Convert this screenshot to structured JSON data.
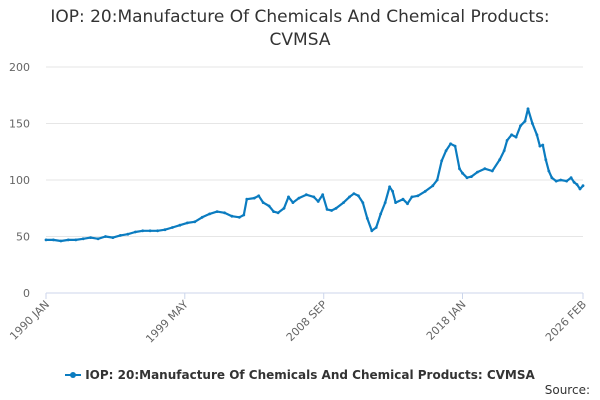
{
  "header": {
    "title_line1": "IOP: 20:Manufacture Of Chemicals And Chemical Products:",
    "title_line2": "CVMSA"
  },
  "legend": {
    "label": "IOP: 20:Manufacture Of Chemicals And Chemical Products: CVMSA"
  },
  "footer": {
    "source": "Source:"
  },
  "colors": {
    "series": "#0b7cc0",
    "grid": "#e6e6e6",
    "axis": "#ccd6eb"
  },
  "chart_data": {
    "type": "line",
    "title": "IOP: 20:Manufacture Of Chemicals And Chemical Products: CVMSA",
    "xlabel": "",
    "ylabel": "",
    "ylim": [
      0,
      200
    ],
    "yticks": [
      0,
      50,
      100,
      150,
      200
    ],
    "xlim": [
      1990.0,
      2026.1
    ],
    "xtick_labels": [
      {
        "label": "1990 JAN",
        "x": 1990.0
      },
      {
        "label": "1999 MAY",
        "x": 1999.33
      },
      {
        "label": "2008 SEP",
        "x": 2008.67
      },
      {
        "label": "2018 JAN",
        "x": 2018.0
      },
      {
        "label": "2026 FEB",
        "x": 2026.1
      }
    ],
    "series": [
      {
        "name": "IOP: 20:Manufacture Of Chemicals And Chemical Products: CVMSA",
        "points": [
          [
            1990.0,
            47
          ],
          [
            1990.5,
            47
          ],
          [
            1991.0,
            46
          ],
          [
            1991.5,
            47
          ],
          [
            1992.0,
            47
          ],
          [
            1992.5,
            48
          ],
          [
            1993.0,
            49
          ],
          [
            1993.5,
            48
          ],
          [
            1994.0,
            50
          ],
          [
            1994.5,
            49
          ],
          [
            1995.0,
            51
          ],
          [
            1995.5,
            52
          ],
          [
            1996.0,
            54
          ],
          [
            1996.5,
            55
          ],
          [
            1997.0,
            55
          ],
          [
            1997.5,
            55
          ],
          [
            1998.0,
            56
          ],
          [
            1998.5,
            58
          ],
          [
            1999.0,
            60
          ],
          [
            1999.5,
            62
          ],
          [
            2000.0,
            63
          ],
          [
            2000.5,
            67
          ],
          [
            2001.0,
            70
          ],
          [
            2001.5,
            72
          ],
          [
            2002.0,
            71
          ],
          [
            2002.5,
            68
          ],
          [
            2003.0,
            67
          ],
          [
            2003.3,
            69
          ],
          [
            2003.5,
            83
          ],
          [
            2004.0,
            84
          ],
          [
            2004.3,
            86
          ],
          [
            2004.6,
            80
          ],
          [
            2005.0,
            77
          ],
          [
            2005.3,
            72
          ],
          [
            2005.6,
            71
          ],
          [
            2006.0,
            75
          ],
          [
            2006.3,
            85
          ],
          [
            2006.6,
            80
          ],
          [
            2007.0,
            84
          ],
          [
            2007.5,
            87
          ],
          [
            2008.0,
            85
          ],
          [
            2008.3,
            81
          ],
          [
            2008.6,
            87
          ],
          [
            2008.9,
            74
          ],
          [
            2009.2,
            73
          ],
          [
            2009.5,
            75
          ],
          [
            2010.0,
            80
          ],
          [
            2010.4,
            85
          ],
          [
            2010.7,
            88
          ],
          [
            2011.0,
            86
          ],
          [
            2011.3,
            80
          ],
          [
            2011.6,
            66
          ],
          [
            2011.9,
            55
          ],
          [
            2012.2,
            58
          ],
          [
            2012.5,
            70
          ],
          [
            2012.8,
            80
          ],
          [
            2013.1,
            94
          ],
          [
            2013.3,
            90
          ],
          [
            2013.5,
            80
          ],
          [
            2014.0,
            83
          ],
          [
            2014.3,
            79
          ],
          [
            2014.6,
            85
          ],
          [
            2015.0,
            86
          ],
          [
            2015.5,
            90
          ],
          [
            2016.0,
            95
          ],
          [
            2016.3,
            100
          ],
          [
            2016.6,
            117
          ],
          [
            2016.9,
            126
          ],
          [
            2017.2,
            132
          ],
          [
            2017.5,
            130
          ],
          [
            2017.8,
            110
          ],
          [
            2018.0,
            106
          ],
          [
            2018.3,
            102
          ],
          [
            2018.6,
            103
          ],
          [
            2019.0,
            107
          ],
          [
            2019.5,
            110
          ],
          [
            2020.0,
            108
          ],
          [
            2020.5,
            118
          ],
          [
            2020.8,
            126
          ],
          [
            2021.0,
            135
          ],
          [
            2021.3,
            140
          ],
          [
            2021.6,
            138
          ],
          [
            2021.9,
            148
          ],
          [
            2022.2,
            152
          ],
          [
            2022.4,
            163
          ],
          [
            2022.7,
            150
          ],
          [
            2023.0,
            140
          ],
          [
            2023.2,
            130
          ],
          [
            2023.4,
            131
          ],
          [
            2023.6,
            118
          ],
          [
            2023.8,
            108
          ],
          [
            2024.0,
            102
          ],
          [
            2024.3,
            99
          ],
          [
            2024.6,
            100
          ],
          [
            2025.0,
            99
          ],
          [
            2025.3,
            102
          ],
          [
            2025.5,
            98
          ],
          [
            2025.7,
            96
          ],
          [
            2025.9,
            92
          ],
          [
            2026.1,
            95
          ]
        ]
      }
    ]
  }
}
